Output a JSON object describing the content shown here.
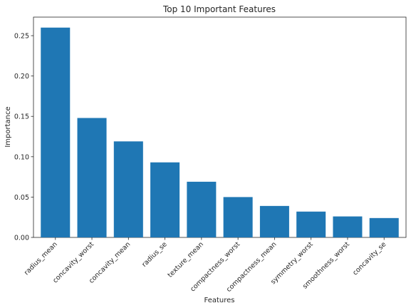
{
  "chart_data": {
    "type": "bar",
    "title": "Top 10 Important Features",
    "xlabel": "Features",
    "ylabel": "Importance",
    "categories": [
      "radius_mean",
      "concavity_worst",
      "concavity_mean",
      "radius_se",
      "texture_mean",
      "compactness_worst",
      "compactness_mean",
      "symmetry_worst",
      "smoothness_worst",
      "concavity_se"
    ],
    "values": [
      0.26,
      0.148,
      0.119,
      0.093,
      0.069,
      0.05,
      0.039,
      0.032,
      0.026,
      0.024
    ],
    "ylim": [
      0,
      0.273
    ],
    "yticks": [
      0.0,
      0.05,
      0.1,
      0.15,
      0.2,
      0.25
    ],
    "ytick_labels": [
      "0.00",
      "0.05",
      "0.10",
      "0.15",
      "0.20",
      "0.25"
    ],
    "grid": false,
    "legend": "none",
    "bar_color": "#1f77b4"
  }
}
